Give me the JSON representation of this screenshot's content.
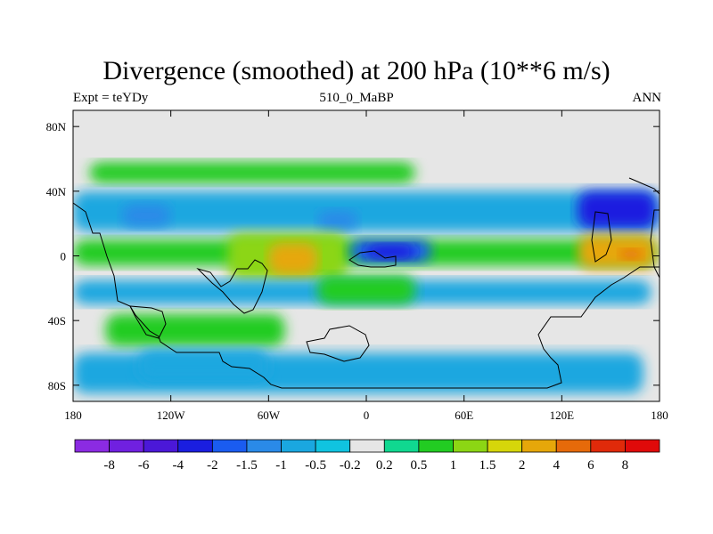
{
  "title": "Divergence (smoothed) at 200 hPa (10**6 m/s)",
  "subtitle_left": "Expt = teYDy",
  "subtitle_center": "510_0_MaBP",
  "subtitle_right": "ANN",
  "chart_data": {
    "type": "heatmap",
    "title": "Divergence (smoothed) at 200 hPa (10**6 m/s)",
    "projection": "cylindrical-equidistant",
    "x_range": [
      -180,
      180
    ],
    "y_range": [
      -90,
      90
    ],
    "x_ticks": [
      {
        "value": -180,
        "label": "180"
      },
      {
        "value": -120,
        "label": "120W"
      },
      {
        "value": -60,
        "label": "60W"
      },
      {
        "value": 0,
        "label": "0"
      },
      {
        "value": 60,
        "label": "60E"
      },
      {
        "value": 120,
        "label": "120E"
      },
      {
        "value": 180,
        "label": "180"
      }
    ],
    "y_ticks": [
      {
        "value": 80,
        "label": "80N"
      },
      {
        "value": 40,
        "label": "40N"
      },
      {
        "value": 0,
        "label": "0"
      },
      {
        "value": -40,
        "label": "40S"
      },
      {
        "value": -80,
        "label": "80S"
      }
    ],
    "colorbar": {
      "colors": [
        "#8b2be2",
        "#7020e0",
        "#4b18d8",
        "#1a1ee0",
        "#1a5cf0",
        "#2a8ae8",
        "#1aa7e0",
        "#10c3e0",
        "#e6e6e6",
        "#10d890",
        "#22cc22",
        "#8cd614",
        "#d6d60a",
        "#e6a70a",
        "#e66a0a",
        "#e02a0a",
        "#e00a0a"
      ],
      "levels": [
        "-8",
        "-6",
        "-4",
        "-2",
        "-1.5",
        "-1",
        "-0.5",
        "-0.2",
        "0.2",
        "0.5",
        "1",
        "1.5",
        "2",
        "4",
        "6",
        "8"
      ]
    },
    "field_regions": [
      {
        "lon": [
          -180,
          180
        ],
        "lat": [
          -90,
          90
        ],
        "value": 0
      },
      {
        "lon": [
          -170,
          30
        ],
        "lat": [
          45,
          58
        ],
        "value": 0.6
      },
      {
        "lon": [
          -180,
          180
        ],
        "lat": [
          15,
          40
        ],
        "value": -0.6
      },
      {
        "lon": [
          -150,
          -120
        ],
        "lat": [
          18,
          32
        ],
        "value": -1.2
      },
      {
        "lon": [
          -30,
          -5
        ],
        "lat": [
          16,
          28
        ],
        "value": -1.2
      },
      {
        "lon": [
          130,
          178
        ],
        "lat": [
          17,
          40
        ],
        "value": -2.5
      },
      {
        "lon": [
          -180,
          178
        ],
        "lat": [
          -6,
          10
        ],
        "value": 0.8
      },
      {
        "lon": [
          -85,
          -12
        ],
        "lat": [
          -15,
          14
        ],
        "value": 1.3
      },
      {
        "lon": [
          -60,
          -30
        ],
        "lat": [
          -12,
          8
        ],
        "value": 2.5
      },
      {
        "lon": [
          -10,
          40
        ],
        "lat": [
          -4,
          10
        ],
        "value": -1.7
      },
      {
        "lon": [
          0,
          30
        ],
        "lat": [
          -2,
          7
        ],
        "value": -2.5
      },
      {
        "lon": [
          130,
          178
        ],
        "lat": [
          -8,
          13
        ],
        "value": 2.0
      },
      {
        "lon": [
          155,
          170
        ],
        "lat": [
          -2,
          4
        ],
        "value": 4
      },
      {
        "lon": [
          -180,
          175
        ],
        "lat": [
          -30,
          -15
        ],
        "value": -0.8
      },
      {
        "lon": [
          -30,
          30
        ],
        "lat": [
          -30,
          -12
        ],
        "value": 0.7
      },
      {
        "lon": [
          -160,
          -50
        ],
        "lat": [
          -56,
          -36
        ],
        "value": 0.8
      },
      {
        "lon": [
          -180,
          170
        ],
        "lat": [
          -85,
          -60
        ],
        "value": -0.6
      },
      {
        "lon": [
          -140,
          -60
        ],
        "lat": [
          -78,
          -58
        ],
        "value": -0.8
      }
    ]
  }
}
